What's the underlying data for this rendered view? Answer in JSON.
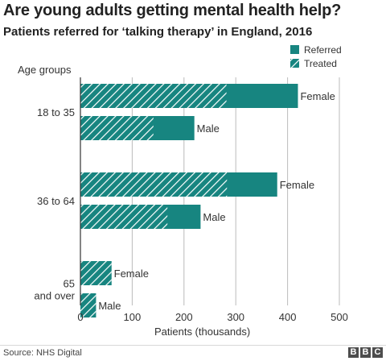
{
  "title": "Are young adults getting mental health help?",
  "subtitle": "Patients referred for ‘talking therapy’ in England, 2016",
  "source": "Source: NHS Digital",
  "logo_letters": [
    "B",
    "B",
    "C"
  ],
  "colors": {
    "referred": "#178580",
    "treated_hatch": "#ffffff",
    "axis": "#333333",
    "grid": "#bbbbbb"
  },
  "chart_data": {
    "type": "bar",
    "orientation": "horizontal",
    "title": "Patients referred for ‘talking therapy’ in England, 2016",
    "group_axis_label": "Age groups",
    "xlabel": "Patients (thousands)",
    "xlim": [
      0,
      500
    ],
    "xticks": [
      0,
      100,
      200,
      300,
      400,
      500
    ],
    "grid": true,
    "legend_position": "top-right",
    "legend": [
      {
        "name": "Referred",
        "style": "solid"
      },
      {
        "name": "Treated",
        "style": "hatched"
      }
    ],
    "groups": [
      {
        "label": "18 to 35",
        "bars": [
          {
            "label": "Female",
            "referred": 420,
            "treated": 282
          },
          {
            "label": "Male",
            "referred": 220,
            "treated": 141
          }
        ]
      },
      {
        "label": "36 to 64",
        "bars": [
          {
            "label": "Female",
            "referred": 380,
            "treated": 283
          },
          {
            "label": "Male",
            "referred": 232,
            "treated": 168
          }
        ]
      },
      {
        "label": "65\nand over",
        "bars": [
          {
            "label": "Female",
            "referred": 60,
            "treated": 60
          },
          {
            "label": "Male",
            "referred": 30,
            "treated": 30
          }
        ]
      }
    ]
  }
}
